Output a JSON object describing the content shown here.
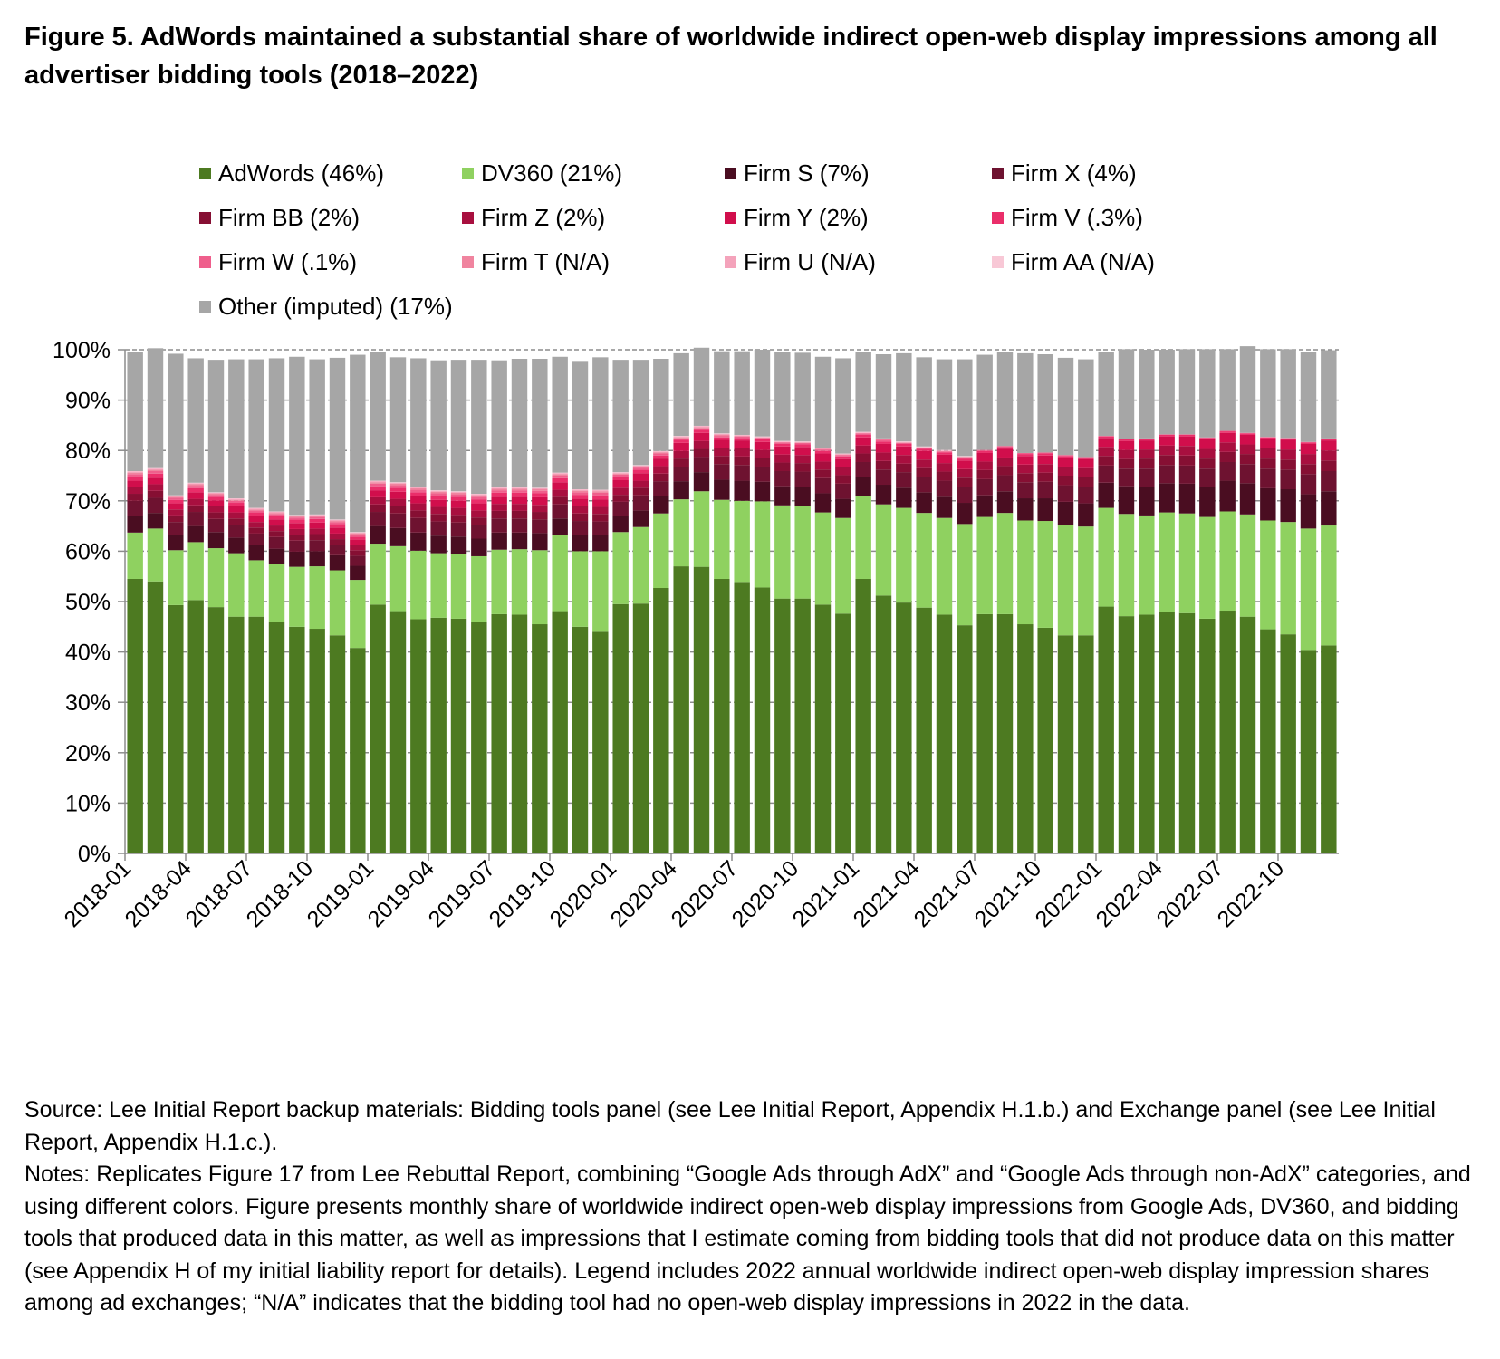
{
  "title": "Figure 5. AdWords maintained a substantial share of worldwide indirect open-web display impressions among all advertiser bidding tools (2018–2022)",
  "notes": {
    "source": "Source: Lee Initial Report backup materials: Bidding tools panel (see Lee Initial Report, Appendix H.1.b.) and Exchange panel (see Lee Initial Report, Appendix H.1.c.).",
    "notes": "Notes: Replicates Figure 17 from Lee Rebuttal Report, combining “Google Ads through AdX” and “Google Ads through non-AdX” categories, and using different colors. Figure presents monthly share of worldwide indirect open-web display impressions from Google Ads, DV360, and bidding tools that produced data in this matter, as well as impressions that I estimate coming from bidding tools that did not produce data on this matter (see Appendix H of my initial liability report for details). Legend includes 2022 annual worldwide indirect open-web display impression shares among ad exchanges; “N/A” indicates that the bidding tool had no open-web display impressions in 2022 in the data."
  },
  "chart_data": {
    "type": "bar",
    "stacked": true,
    "ylim": [
      0,
      100
    ],
    "y_unit": "%",
    "y_ticks": [
      "0%",
      "10%",
      "20%",
      "30%",
      "40%",
      "50%",
      "60%",
      "70%",
      "80%",
      "90%",
      "100%"
    ],
    "x_tick_labels": [
      "2018-01",
      "2018-04",
      "2018-07",
      "2018-10",
      "2019-01",
      "2019-04",
      "2019-07",
      "2019-10",
      "2020-01",
      "2020-04",
      "2020-07",
      "2020-10",
      "2021-01",
      "2021-04",
      "2021-07",
      "2021-10",
      "2022-01",
      "2022-04",
      "2022-07",
      "2022-10"
    ],
    "grid": true,
    "legend_position": "top",
    "categories": [
      "2018-01",
      "2018-02",
      "2018-03",
      "2018-04",
      "2018-05",
      "2018-06",
      "2018-07",
      "2018-08",
      "2018-09",
      "2018-10",
      "2018-11",
      "2018-12",
      "2019-01",
      "2019-02",
      "2019-03",
      "2019-04",
      "2019-05",
      "2019-06",
      "2019-07",
      "2019-08",
      "2019-09",
      "2019-10",
      "2019-11",
      "2019-12",
      "2020-01",
      "2020-02",
      "2020-03",
      "2020-04",
      "2020-05",
      "2020-06",
      "2020-07",
      "2020-08",
      "2020-09",
      "2020-10",
      "2020-11",
      "2020-12",
      "2021-01",
      "2021-02",
      "2021-03",
      "2021-04",
      "2021-05",
      "2021-06",
      "2021-07",
      "2021-08",
      "2021-09",
      "2021-10",
      "2021-11",
      "2021-12",
      "2022-01",
      "2022-02",
      "2022-03",
      "2022-04",
      "2022-05",
      "2022-06",
      "2022-07",
      "2022-08",
      "2022-09",
      "2022-10",
      "2022-11",
      "2022-12"
    ],
    "series": [
      {
        "name": "AdWords (46%)",
        "color": "#4d7a21",
        "values": [
          54.5,
          54,
          49.3,
          50.3,
          48.9,
          47,
          47,
          46,
          45,
          44.6,
          43.3,
          40.8,
          49.4,
          48.1,
          46.5,
          46.8,
          46.6,
          45.9,
          47.5,
          47.4,
          45.5,
          48.1,
          45,
          44,
          49.5,
          49.6,
          52.7,
          57,
          56.9,
          54.5,
          53.9,
          52.8,
          50.6,
          50.6,
          49.4,
          47.6,
          54.5,
          51.2,
          49.8,
          48.8,
          47.4,
          45.3,
          47.5,
          47.5,
          45.5,
          44.8,
          43.3,
          43.3,
          49,
          47.1,
          47.4,
          48,
          47.7,
          46.6,
          48.2,
          47,
          44.5,
          43.5,
          40.4,
          41.3
        ]
      },
      {
        "name": "DV360 (21%)",
        "color": "#8fd160",
        "values": [
          9.2,
          10.5,
          10.9,
          11.5,
          11.7,
          12.6,
          11.2,
          11.5,
          11.9,
          12.4,
          12.9,
          13.5,
          12.1,
          12.9,
          13.6,
          12.8,
          12.8,
          13.1,
          12.8,
          13,
          14.7,
          15.1,
          15,
          16,
          14.3,
          15.2,
          14.8,
          13.3,
          15,
          15.7,
          16.1,
          17.1,
          18.5,
          18.4,
          18.3,
          19,
          16.5,
          18.1,
          18.8,
          18.8,
          19.2,
          20.1,
          19.3,
          20.1,
          20.6,
          21.2,
          21.9,
          21.6,
          19.6,
          20.3,
          19.7,
          19.7,
          19.8,
          20.2,
          19.7,
          20.3,
          21.6,
          22.3,
          24.1,
          23.8
        ]
      },
      {
        "name": "Firm S (7%)",
        "color": "#4a0d21",
        "values": [
          3.3,
          3.1,
          3,
          3.2,
          3.2,
          3.1,
          3,
          3,
          3,
          3,
          3,
          2.8,
          3.5,
          3.6,
          3.6,
          3.5,
          3.5,
          3.5,
          3.4,
          3.3,
          3.4,
          3.3,
          3.3,
          3.2,
          3.2,
          3.3,
          3.4,
          3.6,
          3.8,
          4,
          4,
          3.9,
          3.8,
          3.8,
          3.8,
          3.8,
          3.8,
          3.9,
          4,
          4.1,
          4.2,
          4.2,
          4.3,
          4.3,
          4.4,
          4.5,
          4.6,
          4.6,
          5,
          5.5,
          5.7,
          5.8,
          5.9,
          6,
          6.1,
          6.2,
          6.4,
          6.5,
          6.8,
          6.8
        ]
      },
      {
        "name": "Firm X (4%)",
        "color": "#6e1230",
        "values": [
          3,
          3,
          2.6,
          2.8,
          2.6,
          2.5,
          2.3,
          2.3,
          2.2,
          2.2,
          2.1,
          2,
          2.8,
          2.9,
          2.9,
          2.8,
          2.8,
          2.7,
          2.8,
          2.8,
          2.7,
          2.8,
          2.7,
          2.7,
          2.8,
          3,
          3,
          2.9,
          3,
          3.1,
          3.1,
          3,
          3,
          3,
          3,
          3,
          2.9,
          3,
          3.1,
          3.1,
          3.2,
          3.2,
          3.2,
          3.2,
          3.2,
          3.3,
          3.3,
          3.3,
          3.4,
          3.5,
          3.6,
          3.6,
          3.6,
          3.6,
          3.7,
          3.8,
          3.9,
          3.9,
          4,
          4
        ]
      },
      {
        "name": "Firm BB (2%)",
        "color": "#860f33",
        "values": [
          1.4,
          1.4,
          1.3,
          1.3,
          1.3,
          1.3,
          1.2,
          1.2,
          1.2,
          1.2,
          1.1,
          1.1,
          1.5,
          1.5,
          1.5,
          1.5,
          1.5,
          1.5,
          1.5,
          1.5,
          1.5,
          1.5,
          1.5,
          1.5,
          1.4,
          1.5,
          1.5,
          1.6,
          1.6,
          1.6,
          1.7,
          1.7,
          1.7,
          1.7,
          1.7,
          1.7,
          1.7,
          1.7,
          1.7,
          1.7,
          1.8,
          1.8,
          1.8,
          1.8,
          1.8,
          1.8,
          1.9,
          1.9,
          1.9,
          1.9,
          2,
          2,
          2,
          2,
          2,
          2,
          2,
          2,
          2,
          2.1
        ]
      },
      {
        "name": "Firm Z (2%)",
        "color": "#a80f3f",
        "values": [
          1.3,
          1.3,
          1.2,
          1.3,
          1.2,
          1.2,
          1.1,
          1.1,
          1.1,
          1.1,
          1.1,
          1,
          1.4,
          1.4,
          1.4,
          1.4,
          1.4,
          1.4,
          1.4,
          1.4,
          1.4,
          1.4,
          1.4,
          1.4,
          1.4,
          1.4,
          1.5,
          1.5,
          1.6,
          1.6,
          1.6,
          1.6,
          1.6,
          1.6,
          1.6,
          1.6,
          1.6,
          1.7,
          1.7,
          1.7,
          1.7,
          1.7,
          1.7,
          1.7,
          1.7,
          1.7,
          1.8,
          1.8,
          1.8,
          1.8,
          1.8,
          1.9,
          1.9,
          1.9,
          1.9,
          1.9,
          2,
          2,
          2,
          2
        ]
      },
      {
        "name": "Firm Y (2%)",
        "color": "#d10e4c",
        "values": [
          1.3,
          1.3,
          1.2,
          1.3,
          1.2,
          1.2,
          1.2,
          1.2,
          1.2,
          1.2,
          1.2,
          1.1,
          1.4,
          1.4,
          1.4,
          1.4,
          1.4,
          1.4,
          1.4,
          1.4,
          1.5,
          1.5,
          1.5,
          1.5,
          1.5,
          1.5,
          1.5,
          1.6,
          1.6,
          1.6,
          1.6,
          1.6,
          1.6,
          1.6,
          1.6,
          1.6,
          1.6,
          1.7,
          1.7,
          1.7,
          1.7,
          1.7,
          1.7,
          1.7,
          1.7,
          1.7,
          1.8,
          1.8,
          1.8,
          1.8,
          1.8,
          1.8,
          1.9,
          1.9,
          1.9,
          1.9,
          1.9,
          1.9,
          2,
          2
        ]
      },
      {
        "name": "Firm V (.3%)",
        "color": "#ea2e6a",
        "values": [
          0.8,
          0.8,
          0.7,
          0.8,
          0.7,
          0.7,
          0.7,
          0.7,
          0.7,
          0.7,
          0.7,
          0.6,
          0.8,
          0.8,
          0.8,
          0.8,
          0.8,
          0.8,
          0.8,
          0.8,
          0.8,
          0.8,
          0.8,
          0.8,
          0.7,
          0.7,
          0.6,
          0.6,
          0.6,
          0.5,
          0.5,
          0.5,
          0.5,
          0.5,
          0.5,
          0.5,
          0.5,
          0.5,
          0.5,
          0.4,
          0.4,
          0.4,
          0.4,
          0.4,
          0.4,
          0.4,
          0.3,
          0.3,
          0.3,
          0.3,
          0.3,
          0.3,
          0.3,
          0.3,
          0.3,
          0.3,
          0.3,
          0.3,
          0.3,
          0.3
        ]
      },
      {
        "name": "Firm W (.1%)",
        "color": "#ef5f8c",
        "values": [
          0.5,
          0.5,
          0.4,
          0.5,
          0.4,
          0.4,
          0.4,
          0.4,
          0.4,
          0.4,
          0.4,
          0.4,
          0.5,
          0.5,
          0.5,
          0.5,
          0.5,
          0.5,
          0.5,
          0.5,
          0.5,
          0.5,
          0.5,
          0.5,
          0.4,
          0.4,
          0.4,
          0.3,
          0.3,
          0.3,
          0.3,
          0.3,
          0.3,
          0.3,
          0.3,
          0.3,
          0.3,
          0.3,
          0.2,
          0.2,
          0.2,
          0.2,
          0.2,
          0.2,
          0.2,
          0.2,
          0.2,
          0.1,
          0.1,
          0.1,
          0.1,
          0.1,
          0.1,
          0.1,
          0.1,
          0.1,
          0.1,
          0.1,
          0.1,
          0.1
        ]
      },
      {
        "name": "Firm T (N/A)",
        "color": "#f0849f",
        "values": [
          0.3,
          0.3,
          0.2,
          0.3,
          0.2,
          0.2,
          0.2,
          0.2,
          0.2,
          0.2,
          0.2,
          0.2,
          0.3,
          0.3,
          0.3,
          0.3,
          0.3,
          0.3,
          0.3,
          0.3,
          0.3,
          0.3,
          0.3,
          0.3,
          0.2,
          0.2,
          0.2,
          0.2,
          0.2,
          0.2,
          0.1,
          0.1,
          0.1,
          0.1,
          0.1,
          0.1,
          0.1,
          0.1,
          0.1,
          0.1,
          0.1,
          0.1,
          0,
          0,
          0,
          0,
          0,
          0,
          0,
          0,
          0,
          0,
          0,
          0,
          0,
          0,
          0,
          0,
          0,
          0
        ]
      },
      {
        "name": "Firm U (N/A)",
        "color": "#f4a3bb",
        "values": [
          0.2,
          0.2,
          0.2,
          0.2,
          0.2,
          0.2,
          0.2,
          0.2,
          0.2,
          0.2,
          0.2,
          0.2,
          0.2,
          0.2,
          0.2,
          0.2,
          0.2,
          0.2,
          0.2,
          0.2,
          0.2,
          0.2,
          0.2,
          0.2,
          0.2,
          0.2,
          0.2,
          0.2,
          0.2,
          0.2,
          0.1,
          0.1,
          0.1,
          0.1,
          0.1,
          0.1,
          0.1,
          0.1,
          0.1,
          0.1,
          0.1,
          0.1,
          0,
          0,
          0,
          0,
          0,
          0,
          0,
          0,
          0,
          0,
          0,
          0,
          0,
          0,
          0,
          0,
          0,
          0
        ]
      },
      {
        "name": "Firm AA (N/A)",
        "color": "#f8c8d6",
        "values": [
          0.1,
          0.1,
          0.1,
          0.1,
          0.1,
          0.1,
          0.1,
          0.1,
          0.1,
          0.1,
          0.1,
          0.1,
          0.1,
          0.1,
          0.1,
          0.1,
          0.1,
          0.1,
          0.1,
          0.1,
          0.1,
          0.1,
          0.1,
          0.1,
          0.1,
          0.1,
          0.1,
          0.1,
          0.1,
          0.1,
          0.1,
          0.1,
          0.1,
          0.1,
          0.1,
          0.1,
          0.1,
          0.1,
          0.1,
          0.1,
          0.1,
          0.1,
          0,
          0,
          0,
          0,
          0,
          0,
          0,
          0,
          0,
          0,
          0,
          0,
          0,
          0,
          0,
          0,
          0,
          0
        ]
      },
      {
        "name": "Other (imputed) (17%)",
        "color": "#a6a6a6",
        "values": [
          23.6,
          23.8,
          28.1,
          24.7,
          26.3,
          27.6,
          29.5,
          30.4,
          31.4,
          30.8,
          32.1,
          35.2,
          25.6,
          24.8,
          25.5,
          25.8,
          26.1,
          26.6,
          25.2,
          25.5,
          25.6,
          23,
          25.3,
          26.3,
          22.3,
          20.9,
          18.3,
          16.4,
          15.5,
          16.3,
          16.6,
          17.2,
          17.6,
          17.6,
          18.1,
          18.9,
          15.9,
          16.7,
          17.5,
          17.7,
          18,
          19.2,
          18.9,
          18.6,
          19.8,
          19.5,
          19.3,
          19.4,
          16.7,
          17.8,
          17.6,
          16.8,
          16.9,
          17.5,
          16.2,
          17.2,
          17.4,
          17.6,
          17.8,
          17.5
        ]
      }
    ]
  }
}
